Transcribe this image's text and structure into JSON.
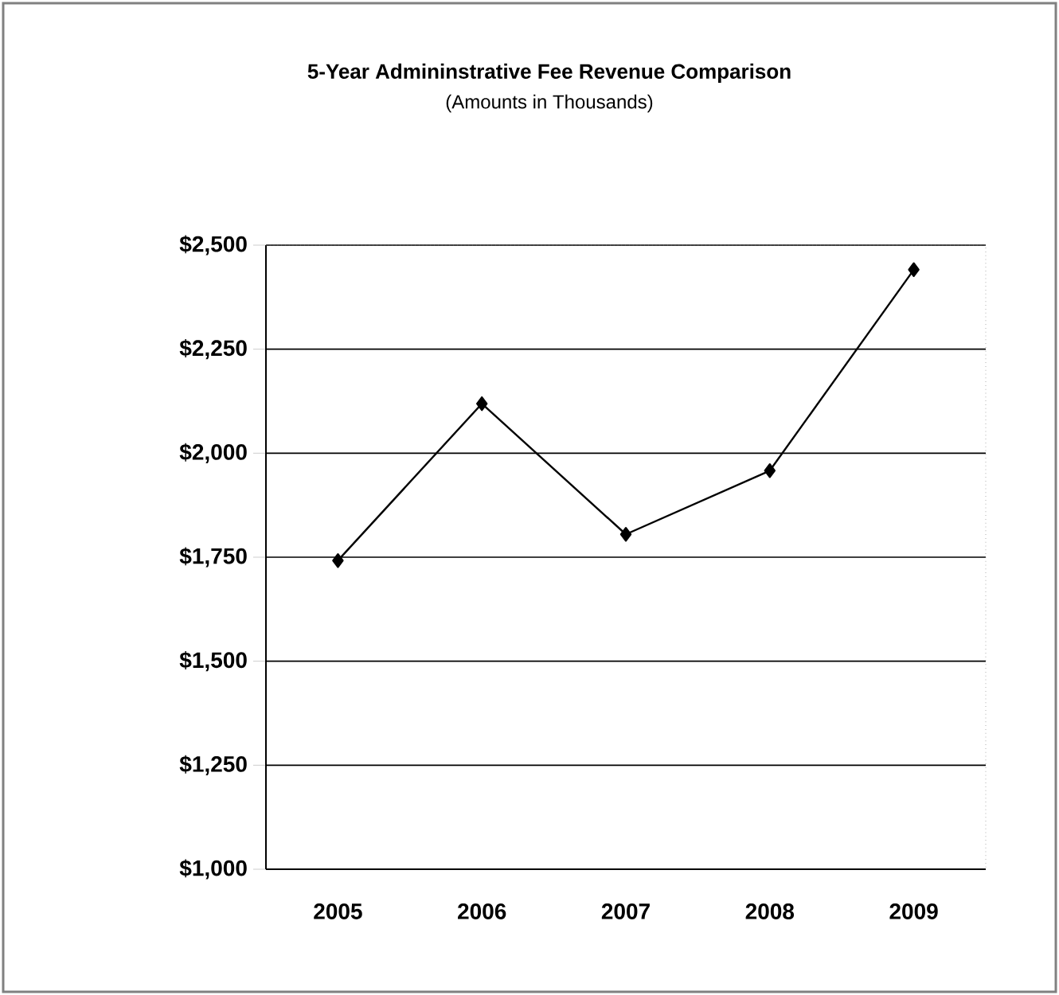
{
  "chart_data": {
    "type": "line",
    "title": "5-Year Admininstrative Fee Revenue Comparison",
    "subtitle": "(Amounts in Thousands)",
    "categories": [
      "2005",
      "2006",
      "2007",
      "2008",
      "2009"
    ],
    "series": [
      {
        "color": "#000000",
        "values": [
          1742,
          2119,
          1805,
          1958,
          2441
        ]
      }
    ],
    "ylim": [
      1000,
      2500
    ],
    "yticks": [
      {
        "value": 1000,
        "label": "$1,000"
      },
      {
        "value": 1250,
        "label": "$1,250"
      },
      {
        "value": 1500,
        "label": "$1,500"
      },
      {
        "value": 1750,
        "label": "$1,750"
      },
      {
        "value": 2000,
        "label": "$2,000"
      },
      {
        "value": 2250,
        "label": "$2,250"
      },
      {
        "value": 2500,
        "label": "$2,500"
      }
    ],
    "grid": "y",
    "marker": "diamond",
    "line_style": "solid"
  }
}
